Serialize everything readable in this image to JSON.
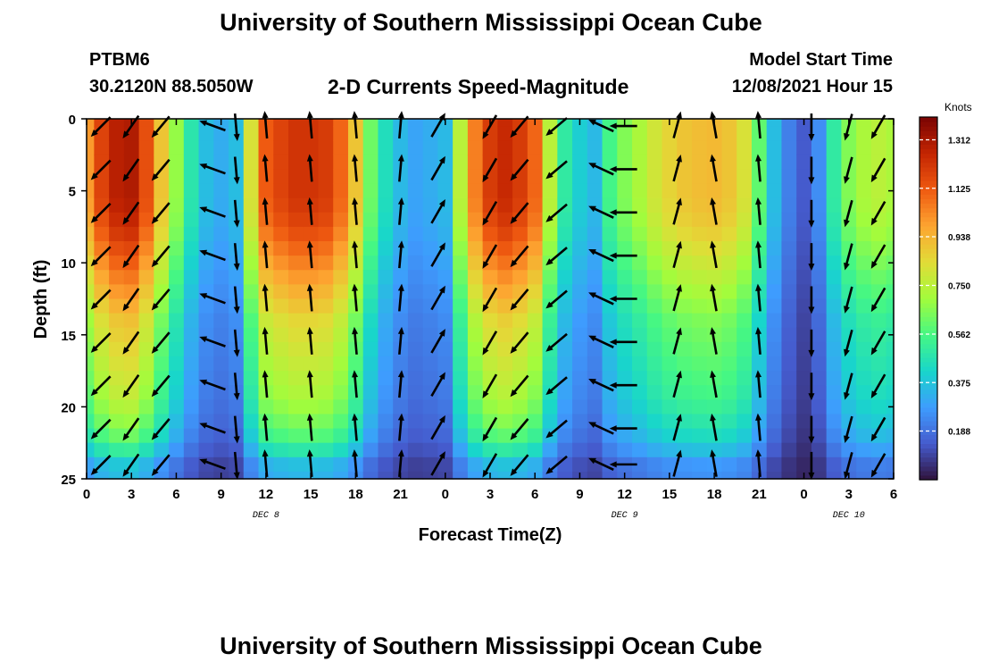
{
  "header": {
    "title": "University of Southern Mississippi Ocean Cube",
    "station": "PTBM6",
    "coordinates": "30.2120N  88.5050W",
    "chart_title": "2-D Currents Speed-Magnitude",
    "model_start_label": "Model Start Time",
    "model_start_value": "12/08/2021 Hour 15"
  },
  "footer": {
    "title": "University of Southern Mississippi Ocean Cube"
  },
  "chart_data": {
    "type": "heatmap",
    "title": "2-D Currents Speed-Magnitude",
    "xlabel": "Forecast Time(Z)",
    "ylabel": "Depth (ft)",
    "xlim": [
      0,
      54
    ],
    "ylim": [
      25,
      0
    ],
    "x_ticks": [
      0,
      3,
      6,
      9,
      12,
      15,
      18,
      21,
      24,
      27,
      30,
      33,
      36,
      39,
      42,
      45,
      48,
      51,
      54
    ],
    "x_tick_labels": [
      "0",
      "3",
      "6",
      "9",
      "12",
      "15",
      "18",
      "21",
      "0",
      "3",
      "6",
      "9",
      "12",
      "15",
      "18",
      "21",
      "0",
      "3",
      "6"
    ],
    "y_ticks": [
      0,
      5,
      10,
      15,
      20,
      25
    ],
    "y_tick_labels": [
      "0",
      "5",
      "10",
      "15",
      "20",
      "25"
    ],
    "date_labels": [
      {
        "x": 12,
        "text": "DEC 8"
      },
      {
        "x": 36,
        "text": "DEC 9"
      },
      {
        "x": 51,
        "text": "DEC 10"
      }
    ],
    "colorbar": {
      "unit": "Knots",
      "min": 0,
      "max": 1.4,
      "ticks": [
        1.312,
        1.125,
        0.938,
        0.75,
        0.562,
        0.375,
        0.188
      ],
      "tick_labels": [
        "1.312",
        "1.125",
        "0.938",
        "0.750",
        "0.562",
        "0.375",
        "0.188"
      ],
      "colormap": "turbo"
    },
    "speed_profile": {
      "time": [
        0,
        1,
        2,
        3,
        4,
        5,
        6,
        7,
        8,
        9,
        10,
        11,
        12,
        13,
        14,
        15,
        16,
        17,
        18,
        19,
        20,
        21,
        22,
        23,
        24,
        25,
        26,
        27,
        28,
        29,
        30,
        31,
        32,
        33,
        34,
        35,
        36,
        37,
        38,
        39,
        40,
        41,
        42,
        43,
        44,
        45,
        46,
        47,
        48,
        49,
        50,
        51,
        52,
        53,
        54
      ],
      "surface_knots": [
        1.0,
        1.18,
        1.28,
        1.3,
        1.15,
        0.9,
        0.68,
        0.48,
        0.36,
        0.32,
        0.36,
        0.82,
        1.12,
        1.18,
        1.22,
        1.22,
        1.2,
        1.1,
        0.9,
        0.62,
        0.45,
        0.35,
        0.3,
        0.32,
        0.35,
        0.75,
        1.05,
        1.2,
        1.25,
        1.2,
        1.1,
        0.75,
        0.5,
        0.4,
        0.35,
        0.55,
        0.65,
        0.72,
        0.8,
        0.86,
        0.9,
        0.92,
        0.93,
        0.9,
        0.82,
        0.6,
        0.36,
        0.22,
        0.14,
        0.25,
        0.5,
        0.65,
        0.72,
        0.75,
        0.72
      ],
      "depth_factor": [
        1.0,
        1.0,
        1.0,
        1.0,
        1.0,
        1.0,
        0.99,
        0.97,
        0.94,
        0.9,
        0.86,
        0.82,
        0.78,
        0.74,
        0.7,
        0.68,
        0.66,
        0.64,
        0.62,
        0.6,
        0.57,
        0.53,
        0.48,
        0.4,
        0.3,
        0.28
      ]
    },
    "vectors": {
      "times": [
        1,
        3,
        5,
        8.5,
        10,
        12,
        15,
        18,
        21,
        23.5,
        27,
        29,
        31.5,
        34.5,
        36,
        39.5,
        42,
        45,
        48.5,
        51,
        53
      ],
      "depths": [
        0.5,
        3.5,
        6.5,
        9.5,
        12.5,
        15.5,
        18.5,
        21.5,
        24
      ],
      "direction_deg": [
        225,
        215,
        220,
        290,
        175,
        355,
        355,
        355,
        5,
        30,
        210,
        220,
        230,
        295,
        270,
        15,
        350,
        355,
        180,
        195,
        210
      ]
    }
  }
}
